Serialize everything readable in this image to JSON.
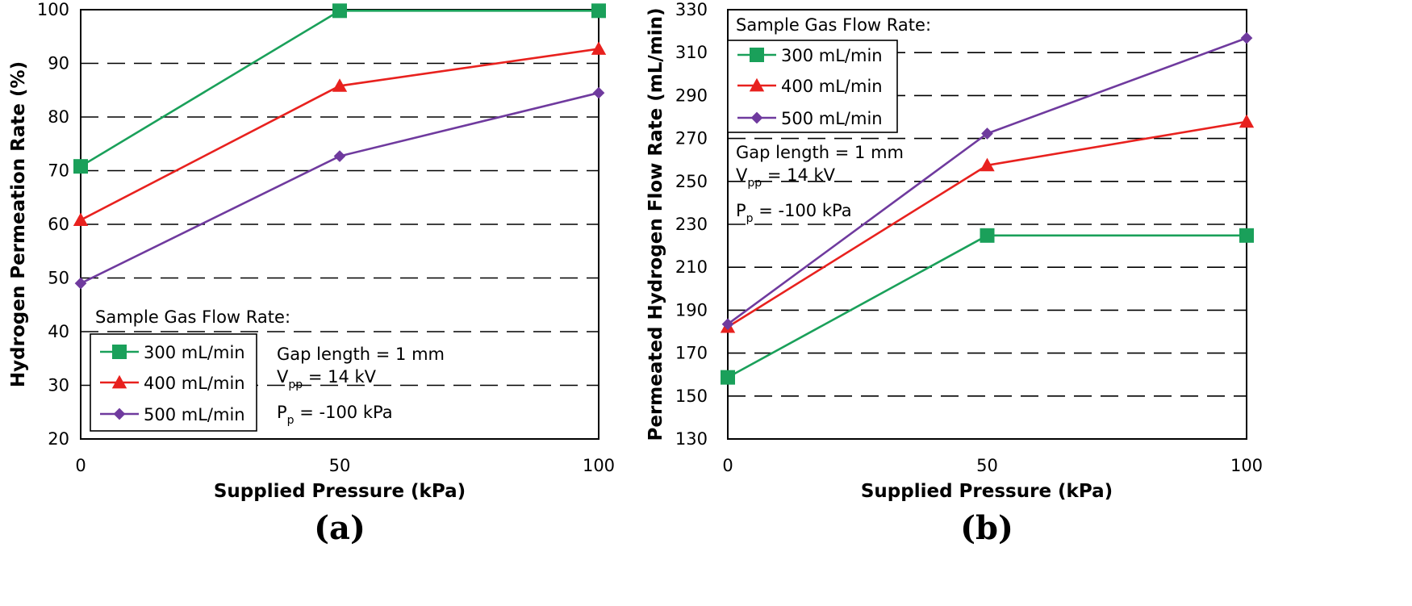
{
  "chart_data": [
    {
      "type": "line",
      "panel": "(a)",
      "xlabel": "Supplied Pressure (kPa)",
      "ylabel": "Hydrogen Permeation Rate (%)",
      "x": [
        0,
        50,
        100
      ],
      "xticks": [
        "0",
        "50",
        "100"
      ],
      "xlim": [
        0,
        100
      ],
      "ylim": [
        20,
        100
      ],
      "yticks": [
        20,
        30,
        40,
        50,
        60,
        70,
        80,
        90,
        100
      ],
      "grid": "horizontal-dashed",
      "legend_title": "Sample Gas Flow Rate:",
      "legend_placement": "bottom-left",
      "series": [
        {
          "name": "300 mL/min",
          "values": [
            70.8,
            99.8,
            99.8
          ],
          "color": "#1aa05a",
          "marker": "square"
        },
        {
          "name": "400 mL/min",
          "values": [
            60.8,
            85.8,
            92.7
          ],
          "color": "#e8211e",
          "marker": "triangle"
        },
        {
          "name": "500 mL/min",
          "values": [
            49.0,
            72.7,
            84.5
          ],
          "color": "#6f3a9e",
          "marker": "diamond"
        }
      ],
      "annotations": {
        "gap": "Gap length = 1 mm",
        "v_main": "V",
        "v_sub": "pp",
        "v_rest": " = 14 kV",
        "p_main": "P",
        "p_sub": "p",
        "p_rest": " = -100 kPa"
      }
    },
    {
      "type": "line",
      "panel": "(b)",
      "xlabel": "Supplied Pressure (kPa)",
      "ylabel": "Permeated Hydrogen Flow Rate (mL/min)",
      "x": [
        0,
        50,
        100
      ],
      "xticks": [
        "0",
        "50",
        "100"
      ],
      "xlim": [
        0,
        100
      ],
      "ylim": [
        130,
        330
      ],
      "yticks": [
        130,
        150,
        170,
        190,
        210,
        230,
        250,
        270,
        290,
        310,
        330
      ],
      "grid": "horizontal-dashed",
      "legend_title": "Sample Gas Flow Rate:",
      "legend_placement": "top-left",
      "series": [
        {
          "name": "300 mL/min",
          "values": [
            158.7,
            224.8,
            224.8
          ],
          "color": "#1aa05a",
          "marker": "square"
        },
        {
          "name": "400 mL/min",
          "values": [
            182.2,
            257.5,
            277.8
          ],
          "color": "#e8211e",
          "marker": "triangle"
        },
        {
          "name": "500 mL/min",
          "values": [
            183.5,
            272.3,
            316.8
          ],
          "color": "#6f3a9e",
          "marker": "diamond"
        }
      ],
      "annotations": {
        "gap": "Gap length = 1 mm",
        "v_main": "V",
        "v_sub": "pp",
        "v_rest": " = 14 kV",
        "p_main": "P",
        "p_sub": "p",
        "p_rest": " = -100 kPa"
      }
    }
  ]
}
